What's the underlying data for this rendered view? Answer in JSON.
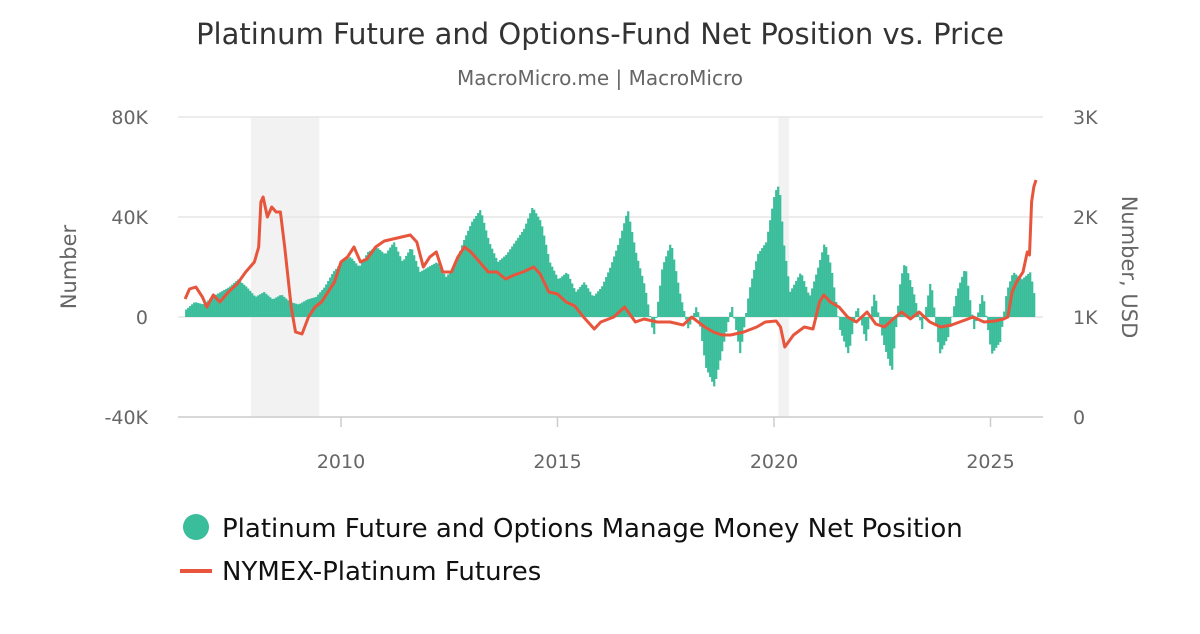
{
  "chart_data": {
    "type": "bar+line",
    "title": "Platinum Future and Options-Fund Net Position vs. Price",
    "subtitle": "MacroMicro.me | MacroMicro",
    "ylabel_left": "Number",
    "ylabel_right": "Number, USD",
    "ylim_left": [
      -40000,
      80000
    ],
    "ylim_right": [
      0,
      3000
    ],
    "yticks_left": [
      "-40K",
      "0",
      "40K",
      "80K"
    ],
    "yticks_right": [
      "0",
      "1K",
      "2K",
      "3K"
    ],
    "xlim": [
      2006.25,
      2026.2
    ],
    "xticks": [
      "2010",
      "2015",
      "2020",
      "2025"
    ],
    "grid": true,
    "legend_placement": "bottom-left",
    "shaded_periods": [
      [
        2007.92,
        2009.5
      ],
      [
        2020.1,
        2020.35
      ]
    ],
    "colors": {
      "net_position": "#3abd9a",
      "price": "#e8553d",
      "shade": "#f2f2f2"
    },
    "series": [
      {
        "name": "Platinum Future and Options Manage Money Net Position",
        "type": "bar",
        "axis": "left",
        "points": [
          [
            2006.4,
            3000
          ],
          [
            2006.6,
            6000
          ],
          [
            2006.8,
            5000
          ],
          [
            2007.0,
            8000
          ],
          [
            2007.2,
            10000
          ],
          [
            2007.4,
            12000
          ],
          [
            2007.6,
            15000
          ],
          [
            2007.8,
            12000
          ],
          [
            2008.0,
            8000
          ],
          [
            2008.2,
            10000
          ],
          [
            2008.4,
            7000
          ],
          [
            2008.6,
            9000
          ],
          [
            2008.8,
            6000
          ],
          [
            2009.0,
            5000
          ],
          [
            2009.2,
            7000
          ],
          [
            2009.4,
            8000
          ],
          [
            2009.6,
            12000
          ],
          [
            2009.8,
            18000
          ],
          [
            2010.0,
            22000
          ],
          [
            2010.2,
            24000
          ],
          [
            2010.4,
            20000
          ],
          [
            2010.6,
            26000
          ],
          [
            2010.8,
            28000
          ],
          [
            2011.0,
            25000
          ],
          [
            2011.2,
            30000
          ],
          [
            2011.4,
            22000
          ],
          [
            2011.6,
            28000
          ],
          [
            2011.8,
            18000
          ],
          [
            2012.0,
            20000
          ],
          [
            2012.2,
            22000
          ],
          [
            2012.4,
            16000
          ],
          [
            2012.6,
            20000
          ],
          [
            2012.8,
            30000
          ],
          [
            2013.0,
            38000
          ],
          [
            2013.2,
            43000
          ],
          [
            2013.4,
            30000
          ],
          [
            2013.6,
            22000
          ],
          [
            2013.8,
            25000
          ],
          [
            2014.0,
            30000
          ],
          [
            2014.2,
            35000
          ],
          [
            2014.4,
            44000
          ],
          [
            2014.6,
            38000
          ],
          [
            2014.8,
            22000
          ],
          [
            2015.0,
            15000
          ],
          [
            2015.2,
            18000
          ],
          [
            2015.4,
            10000
          ],
          [
            2015.6,
            14000
          ],
          [
            2015.8,
            8000
          ],
          [
            2016.0,
            12000
          ],
          [
            2016.2,
            20000
          ],
          [
            2016.4,
            30000
          ],
          [
            2016.6,
            43000
          ],
          [
            2016.8,
            25000
          ],
          [
            2017.0,
            12000
          ],
          [
            2017.2,
            -8000
          ],
          [
            2017.4,
            20000
          ],
          [
            2017.6,
            30000
          ],
          [
            2017.8,
            10000
          ],
          [
            2018.0,
            -5000
          ],
          [
            2018.2,
            5000
          ],
          [
            2018.4,
            -20000
          ],
          [
            2018.6,
            -28000
          ],
          [
            2018.8,
            -12000
          ],
          [
            2019.0,
            5000
          ],
          [
            2019.2,
            -15000
          ],
          [
            2019.4,
            10000
          ],
          [
            2019.6,
            25000
          ],
          [
            2019.8,
            30000
          ],
          [
            2020.0,
            50000
          ],
          [
            2020.1,
            53000
          ],
          [
            2020.2,
            30000
          ],
          [
            2020.35,
            10000
          ],
          [
            2020.6,
            18000
          ],
          [
            2020.8,
            8000
          ],
          [
            2021.0,
            20000
          ],
          [
            2021.15,
            30000
          ],
          [
            2021.3,
            20000
          ],
          [
            2021.5,
            -5000
          ],
          [
            2021.7,
            -15000
          ],
          [
            2021.9,
            5000
          ],
          [
            2022.1,
            -10000
          ],
          [
            2022.3,
            10000
          ],
          [
            2022.5,
            -10000
          ],
          [
            2022.7,
            -22000
          ],
          [
            2022.9,
            15000
          ],
          [
            2023.0,
            22000
          ],
          [
            2023.2,
            10000
          ],
          [
            2023.4,
            -5000
          ],
          [
            2023.6,
            15000
          ],
          [
            2023.8,
            -15000
          ],
          [
            2024.0,
            -8000
          ],
          [
            2024.2,
            10000
          ],
          [
            2024.4,
            20000
          ],
          [
            2024.6,
            -5000
          ],
          [
            2024.8,
            10000
          ],
          [
            2025.0,
            -15000
          ],
          [
            2025.2,
            -10000
          ],
          [
            2025.35,
            10000
          ],
          [
            2025.5,
            18000
          ],
          [
            2025.7,
            15000
          ],
          [
            2025.9,
            18000
          ],
          [
            2026.0,
            8000
          ]
        ]
      },
      {
        "name": "NYMEX-Platinum Futures",
        "type": "line",
        "axis": "right",
        "points": [
          [
            2006.4,
            1180
          ],
          [
            2006.5,
            1280
          ],
          [
            2006.65,
            1300
          ],
          [
            2006.8,
            1200
          ],
          [
            2006.9,
            1100
          ],
          [
            2007.05,
            1220
          ],
          [
            2007.2,
            1150
          ],
          [
            2007.4,
            1250
          ],
          [
            2007.6,
            1330
          ],
          [
            2007.8,
            1450
          ],
          [
            2008.0,
            1550
          ],
          [
            2008.1,
            1700
          ],
          [
            2008.15,
            2150
          ],
          [
            2008.2,
            2200
          ],
          [
            2008.3,
            2000
          ],
          [
            2008.4,
            2100
          ],
          [
            2008.5,
            2050
          ],
          [
            2008.6,
            2050
          ],
          [
            2008.7,
            1700
          ],
          [
            2008.85,
            1100
          ],
          [
            2008.95,
            850
          ],
          [
            2009.1,
            830
          ],
          [
            2009.25,
            1000
          ],
          [
            2009.4,
            1100
          ],
          [
            2009.55,
            1150
          ],
          [
            2009.7,
            1250
          ],
          [
            2009.85,
            1350
          ],
          [
            2010.0,
            1550
          ],
          [
            2010.15,
            1600
          ],
          [
            2010.3,
            1700
          ],
          [
            2010.45,
            1550
          ],
          [
            2010.6,
            1580
          ],
          [
            2010.8,
            1700
          ],
          [
            2011.0,
            1760
          ],
          [
            2011.2,
            1780
          ],
          [
            2011.4,
            1800
          ],
          [
            2011.6,
            1820
          ],
          [
            2011.75,
            1750
          ],
          [
            2011.9,
            1500
          ],
          [
            2012.05,
            1600
          ],
          [
            2012.2,
            1650
          ],
          [
            2012.35,
            1450
          ],
          [
            2012.55,
            1450
          ],
          [
            2012.7,
            1600
          ],
          [
            2012.85,
            1700
          ],
          [
            2013.0,
            1650
          ],
          [
            2013.2,
            1550
          ],
          [
            2013.4,
            1450
          ],
          [
            2013.6,
            1450
          ],
          [
            2013.8,
            1380
          ],
          [
            2014.0,
            1420
          ],
          [
            2014.2,
            1450
          ],
          [
            2014.45,
            1500
          ],
          [
            2014.6,
            1430
          ],
          [
            2014.8,
            1250
          ],
          [
            2015.0,
            1230
          ],
          [
            2015.2,
            1150
          ],
          [
            2015.4,
            1110
          ],
          [
            2015.6,
            1000
          ],
          [
            2015.85,
            880
          ],
          [
            2016.0,
            950
          ],
          [
            2016.3,
            1000
          ],
          [
            2016.55,
            1100
          ],
          [
            2016.8,
            950
          ],
          [
            2017.0,
            980
          ],
          [
            2017.3,
            950
          ],
          [
            2017.6,
            950
          ],
          [
            2017.9,
            920
          ],
          [
            2018.1,
            1000
          ],
          [
            2018.4,
            900
          ],
          [
            2018.6,
            850
          ],
          [
            2018.8,
            820
          ],
          [
            2019.0,
            820
          ],
          [
            2019.3,
            850
          ],
          [
            2019.6,
            900
          ],
          [
            2019.8,
            950
          ],
          [
            2020.05,
            960
          ],
          [
            2020.15,
            900
          ],
          [
            2020.25,
            700
          ],
          [
            2020.45,
            820
          ],
          [
            2020.7,
            900
          ],
          [
            2020.9,
            880
          ],
          [
            2021.05,
            1150
          ],
          [
            2021.15,
            1220
          ],
          [
            2021.3,
            1150
          ],
          [
            2021.5,
            1100
          ],
          [
            2021.7,
            1000
          ],
          [
            2021.9,
            950
          ],
          [
            2022.15,
            1050
          ],
          [
            2022.35,
            930
          ],
          [
            2022.55,
            900
          ],
          [
            2022.75,
            980
          ],
          [
            2022.95,
            1050
          ],
          [
            2023.15,
            980
          ],
          [
            2023.35,
            1050
          ],
          [
            2023.6,
            950
          ],
          [
            2023.85,
            900
          ],
          [
            2024.1,
            920
          ],
          [
            2024.35,
            960
          ],
          [
            2024.6,
            1000
          ],
          [
            2024.85,
            950
          ],
          [
            2025.1,
            960
          ],
          [
            2025.3,
            980
          ],
          [
            2025.4,
            1000
          ],
          [
            2025.5,
            1250
          ],
          [
            2025.6,
            1350
          ],
          [
            2025.75,
            1450
          ],
          [
            2025.85,
            1650
          ],
          [
            2025.9,
            1620
          ],
          [
            2025.95,
            2150
          ],
          [
            2026.0,
            2300
          ],
          [
            2026.05,
            2370
          ]
        ]
      }
    ]
  }
}
